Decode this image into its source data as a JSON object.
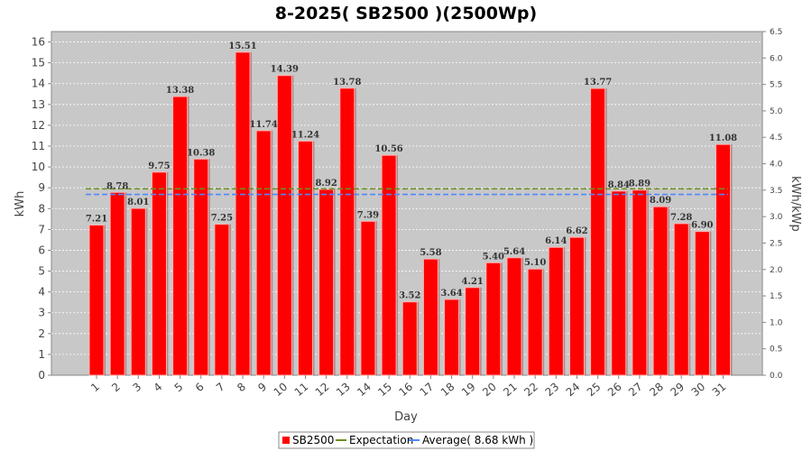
{
  "chart_data": {
    "type": "bar",
    "title": "8-2025( SB2500 )(2500Wp)",
    "xlabel": "Day",
    "ylabel": "kWh",
    "ylabel_right": "kWh/kWp",
    "ylim": [
      0,
      16.5
    ],
    "ylim_right": [
      0,
      6.5
    ],
    "yticks": [
      0,
      1,
      2,
      3,
      4,
      5,
      6,
      7,
      8,
      9,
      10,
      11,
      12,
      13,
      14,
      15,
      16
    ],
    "yticks_right": [
      "0.0",
      "0.5",
      "1.0",
      "1.5",
      "2.0",
      "2.5",
      "3.0",
      "3.5",
      "4.0",
      "4.5",
      "5.0",
      "5.5",
      "6.0",
      "6.5"
    ],
    "categories": [
      "1",
      "2",
      "3",
      "4",
      "5",
      "6",
      "7",
      "8",
      "9",
      "10",
      "11",
      "12",
      "13",
      "14",
      "15",
      "16",
      "17",
      "18",
      "19",
      "20",
      "21",
      "22",
      "23",
      "24",
      "25",
      "26",
      "27",
      "28",
      "29",
      "30",
      "31"
    ],
    "series": [
      {
        "name": "SB2500",
        "color": "#ff0000",
        "values": [
          7.21,
          8.78,
          8.01,
          9.75,
          13.38,
          10.38,
          7.25,
          15.51,
          11.74,
          14.39,
          11.24,
          8.92,
          13.78,
          7.39,
          10.56,
          3.52,
          5.58,
          3.64,
          4.21,
          5.4,
          5.64,
          5.1,
          6.14,
          6.62,
          13.77,
          8.84,
          8.89,
          8.09,
          7.28,
          6.9,
          11.08
        ],
        "labels": [
          "7.21",
          "8.78",
          "8.01",
          "9.75",
          "13.38",
          "10.38",
          "7.25",
          "15.51",
          "11.74",
          "14.39",
          "11.24",
          "8.92",
          "13.78",
          "7.39",
          "10.56",
          "3.52",
          "5.58",
          "3.64",
          "4.21",
          "5.40",
          "5.64",
          "5.10",
          "6.14",
          "6.62",
          "13.77",
          "8.84",
          "8.89",
          "8.09",
          "7.28",
          "6.90",
          "11.08"
        ]
      }
    ],
    "lines": [
      {
        "name": "Expectation",
        "value": 8.95,
        "color": "#6b8e23",
        "dashed": true
      },
      {
        "name": "Average( 8.68 kWh )",
        "value": 8.68,
        "color": "#4d88ff",
        "dashed": true
      }
    ],
    "legend": {
      "position": "bottom",
      "items": [
        {
          "label": "SB2500",
          "color": "#ff0000",
          "kind": "box"
        },
        {
          "label": "Expectation",
          "color": "#6b8e23",
          "kind": "line"
        },
        {
          "label": "Average( 8.68 kWh )",
          "color": "#4d88ff",
          "kind": "line"
        }
      ]
    },
    "grid": true,
    "plot_background": "#c8c8c8"
  }
}
